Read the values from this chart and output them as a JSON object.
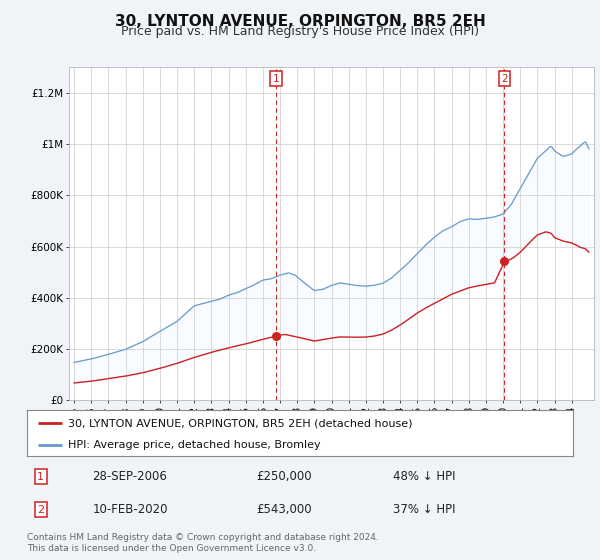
{
  "title": "30, LYNTON AVENUE, ORPINGTON, BR5 2EH",
  "subtitle": "Price paid vs. HM Land Registry's House Price Index (HPI)",
  "footnote": "Contains HM Land Registry data © Crown copyright and database right 2024.\nThis data is licensed under the Open Government Licence v3.0.",
  "legend_line1": "30, LYNTON AVENUE, ORPINGTON, BR5 2EH (detached house)",
  "legend_line2": "HPI: Average price, detached house, Bromley",
  "marker1_date": "28-SEP-2006",
  "marker1_price": "£250,000",
  "marker1_hpi": "48% ↓ HPI",
  "marker2_date": "10-FEB-2020",
  "marker2_price": "£543,000",
  "marker2_hpi": "37% ↓ HPI",
  "marker1_x": 2006.75,
  "marker2_x": 2020.08,
  "marker1_y": 250000,
  "marker2_y": 543000,
  "ylim": [
    0,
    1300000
  ],
  "xlim": [
    1994.7,
    2025.3
  ],
  "background_color": "#f0f4f8",
  "plot_bg_color": "#ffffff",
  "red_color": "#cc2222",
  "blue_color": "#6699cc",
  "fill_color": "#ddeeff",
  "title_fontsize": 11,
  "subtitle_fontsize": 9,
  "tick_label_fontsize": 7.5,
  "ytick_labels": [
    "£0",
    "£200K",
    "£400K",
    "£600K",
    "£800K",
    "£1M",
    "£1.2M"
  ],
  "ytick_values": [
    0,
    200000,
    400000,
    600000,
    800000,
    1000000,
    1200000
  ],
  "xtick_years": [
    1995,
    1996,
    1997,
    1998,
    1999,
    2000,
    2001,
    2002,
    2003,
    2004,
    2005,
    2006,
    2007,
    2008,
    2009,
    2010,
    2011,
    2012,
    2013,
    2014,
    2015,
    2016,
    2017,
    2018,
    2019,
    2020,
    2021,
    2022,
    2023,
    2024
  ]
}
